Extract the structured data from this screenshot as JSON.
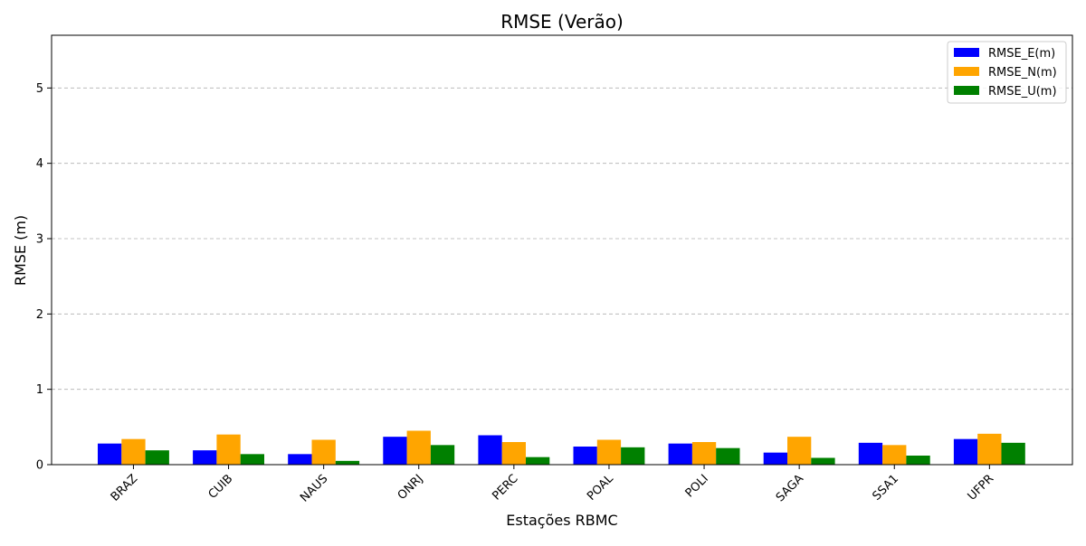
{
  "chart_data": {
    "type": "bar",
    "title": "RMSE (Verão)",
    "xlabel": "Estações RBMC",
    "ylabel": "RMSE (m)",
    "ylim": [
      0,
      5.7
    ],
    "yticks": [
      0,
      1,
      2,
      3,
      4,
      5
    ],
    "grid": "y-dashed",
    "legend_position": "top-right",
    "categories": [
      "BRAZ",
      "CUIB",
      "NAUS",
      "ONRJ",
      "PERC",
      "POAL",
      "POLI",
      "SAGA",
      "SSA1",
      "UFPR"
    ],
    "series": [
      {
        "name": "RMSE_E(m)",
        "color": "#0000ff",
        "values": [
          0.28,
          0.19,
          0.14,
          0.37,
          0.39,
          0.24,
          0.28,
          0.16,
          0.29,
          0.34
        ]
      },
      {
        "name": "RMSE_N(m)",
        "color": "#ffa500",
        "values": [
          0.34,
          0.4,
          0.33,
          0.45,
          0.3,
          0.33,
          0.3,
          0.37,
          0.26,
          0.41
        ]
      },
      {
        "name": "RMSE_U(m)",
        "color": "#008000",
        "values": [
          0.19,
          0.14,
          0.05,
          0.26,
          0.1,
          0.23,
          0.22,
          0.09,
          0.12,
          0.29
        ]
      }
    ]
  }
}
